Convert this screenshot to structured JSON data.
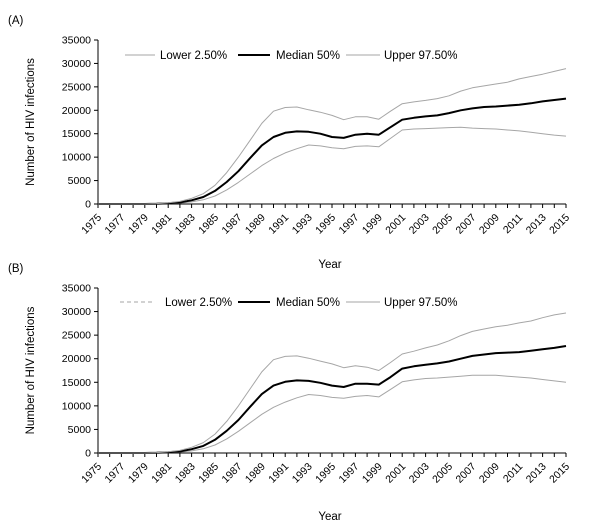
{
  "chart_data": [
    {
      "type": "line",
      "panel_label": "(A)",
      "xlabel": "Year",
      "ylabel": "Number of HIV infections",
      "ylim": [
        0,
        35000
      ],
      "yticks": [
        "0",
        "5000",
        "10000",
        "15000",
        "20000",
        "25000",
        "30000",
        "35000"
      ],
      "xticks": [
        "1975",
        "1977",
        "1979",
        "1981",
        "1983",
        "1985",
        "1987",
        "1989",
        "1991",
        "1993",
        "1995",
        "1997",
        "1999",
        "2001",
        "2003",
        "2005",
        "2007",
        "2009",
        "2011",
        "2013",
        "2015"
      ],
      "x": [
        1975,
        1976,
        1977,
        1978,
        1979,
        1980,
        1981,
        1982,
        1983,
        1984,
        1985,
        1986,
        1987,
        1988,
        1989,
        1990,
        1991,
        1992,
        1993,
        1994,
        1995,
        1996,
        1997,
        1998,
        1999,
        2000,
        2001,
        2002,
        2003,
        2004,
        2005,
        2006,
        2007,
        2008,
        2009,
        2010,
        2011,
        2012,
        2013,
        2014,
        2015
      ],
      "series": [
        {
          "name": "Lower 2.50%",
          "color": "#a6a6a6",
          "width": 1,
          "values": [
            0,
            0,
            0,
            0,
            0,
            30,
            80,
            200,
            450,
            900,
            1700,
            3000,
            4600,
            6400,
            8200,
            9700,
            10900,
            11800,
            12600,
            12400,
            12000,
            11800,
            12300,
            12400,
            12200,
            14000,
            15800,
            16000,
            16100,
            16200,
            16300,
            16400,
            16200,
            16100,
            16000,
            15800,
            15600,
            15300,
            15000,
            14700,
            14500
          ]
        },
        {
          "name": "Median 50%",
          "color": "#000000",
          "width": 2,
          "values": [
            0,
            0,
            0,
            0,
            0,
            50,
            150,
            350,
            800,
            1500,
            2800,
            4700,
            7000,
            9800,
            12500,
            14300,
            15200,
            15500,
            15400,
            15000,
            14300,
            14100,
            14800,
            15000,
            14800,
            16400,
            18000,
            18400,
            18700,
            18900,
            19400,
            20000,
            20400,
            20700,
            20800,
            21000,
            21200,
            21500,
            21900,
            22200,
            22500
          ]
        },
        {
          "name": "Upper 97.50%",
          "color": "#a6a6a6",
          "width": 1,
          "values": [
            0,
            0,
            0,
            0,
            0,
            80,
            250,
            550,
            1200,
            2200,
            4000,
            6700,
            10000,
            13600,
            17200,
            19800,
            20600,
            20700,
            20100,
            19600,
            18900,
            18000,
            18600,
            18600,
            18100,
            19800,
            21400,
            21800,
            22100,
            22500,
            23100,
            24100,
            24800,
            25200,
            25600,
            26000,
            26700,
            27200,
            27700,
            28300,
            28900
          ]
        }
      ]
    },
    {
      "type": "line",
      "panel_label": "(B)",
      "xlabel": "Year",
      "ylabel": "Number of HIV infections",
      "ylim": [
        0,
        35000
      ],
      "yticks": [
        "0",
        "5000",
        "10000",
        "15000",
        "20000",
        "25000",
        "30000",
        "35000"
      ],
      "xticks": [
        "1975",
        "1977",
        "1979",
        "1981",
        "1983",
        "1985",
        "1987",
        "1989",
        "1991",
        "1993",
        "1995",
        "1997",
        "1999",
        "2001",
        "2003",
        "2005",
        "2007",
        "2009",
        "2011",
        "2013",
        "2015"
      ],
      "x": [
        1975,
        1976,
        1977,
        1978,
        1979,
        1980,
        1981,
        1982,
        1983,
        1984,
        1985,
        1986,
        1987,
        1988,
        1989,
        1990,
        1991,
        1992,
        1993,
        1994,
        1995,
        1996,
        1997,
        1998,
        1999,
        2000,
        2001,
        2002,
        2003,
        2004,
        2005,
        2006,
        2007,
        2008,
        2009,
        2010,
        2011,
        2012,
        2013,
        2014,
        2015
      ],
      "series": [
        {
          "name": "Lower 2.50%",
          "color": "#a6a6a6",
          "width": 1,
          "values": [
            0,
            0,
            0,
            0,
            0,
            30,
            80,
            200,
            450,
            900,
            1700,
            3000,
            4600,
            6400,
            8200,
            9700,
            10800,
            11700,
            12400,
            12200,
            11800,
            11600,
            12000,
            12200,
            11900,
            13500,
            15100,
            15500,
            15800,
            15900,
            16100,
            16300,
            16500,
            16500,
            16500,
            16300,
            16100,
            15900,
            15600,
            15300,
            15000
          ]
        },
        {
          "name": "Median 50%",
          "color": "#000000",
          "width": 2,
          "values": [
            0,
            0,
            0,
            0,
            0,
            50,
            150,
            350,
            800,
            1500,
            2800,
            4700,
            7000,
            9800,
            12500,
            14300,
            15100,
            15400,
            15300,
            14900,
            14300,
            14000,
            14700,
            14700,
            14500,
            16100,
            17900,
            18400,
            18700,
            19000,
            19400,
            20000,
            20600,
            20900,
            21200,
            21300,
            21400,
            21700,
            22000,
            22300,
            22700
          ]
        },
        {
          "name": "Upper 97.50%",
          "color": "#a6a6a6",
          "width": 1,
          "values": [
            0,
            0,
            0,
            0,
            0,
            80,
            250,
            550,
            1200,
            2200,
            4000,
            6700,
            10000,
            13600,
            17200,
            19800,
            20500,
            20600,
            20100,
            19500,
            18900,
            18100,
            18500,
            18200,
            17500,
            19200,
            21000,
            21600,
            22300,
            22900,
            23800,
            24900,
            25800,
            26300,
            26800,
            27100,
            27600,
            28000,
            28700,
            29300,
            29700
          ]
        }
      ],
      "legend_dash_on_first": true
    }
  ]
}
